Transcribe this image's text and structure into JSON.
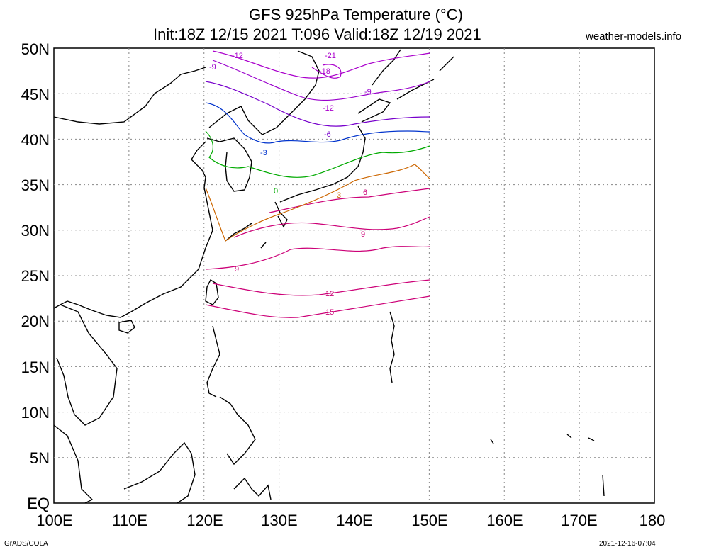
{
  "header": {
    "title_line1": "GFS 925hPa Temperature (°C)",
    "title_line2": "Init:18Z 12/15 2021 T:096 Valid:18Z 12/19 2021",
    "site": "weather-models.info"
  },
  "footer": {
    "credit": "GrADS/COLA",
    "timestamp": "2021-12-16-07:04"
  },
  "axes": {
    "lat_labels": [
      "EQ",
      "5N",
      "10N",
      "15N",
      "20N",
      "25N",
      "30N",
      "35N",
      "40N",
      "45N",
      "50N"
    ],
    "lon_labels": [
      "100E",
      "110E",
      "120E",
      "130E",
      "140E",
      "150E",
      "160E",
      "170E",
      "180"
    ],
    "lat_range": [
      0,
      50
    ],
    "lon_range": [
      100,
      180
    ],
    "grid": "dotted"
  },
  "contours": [
    {
      "label": "15",
      "color": "#cc0077"
    },
    {
      "label": "12",
      "color": "#cc0077"
    },
    {
      "label": "9",
      "color": "#cc0077"
    },
    {
      "label": "6",
      "color": "#cc0077"
    },
    {
      "label": "3",
      "color": "#cc6600"
    },
    {
      "label": "0",
      "color": "#00aa00"
    },
    {
      "label": "-3",
      "color": "#0033cc"
    },
    {
      "label": "-6",
      "color": "#7700cc"
    },
    {
      "label": "-9",
      "color": "#9900cc"
    },
    {
      "label": "-12",
      "color": "#aa00cc"
    },
    {
      "label": "-18",
      "color": "#aa00cc"
    },
    {
      "label": "-21",
      "color": "#aa00cc"
    }
  ]
}
